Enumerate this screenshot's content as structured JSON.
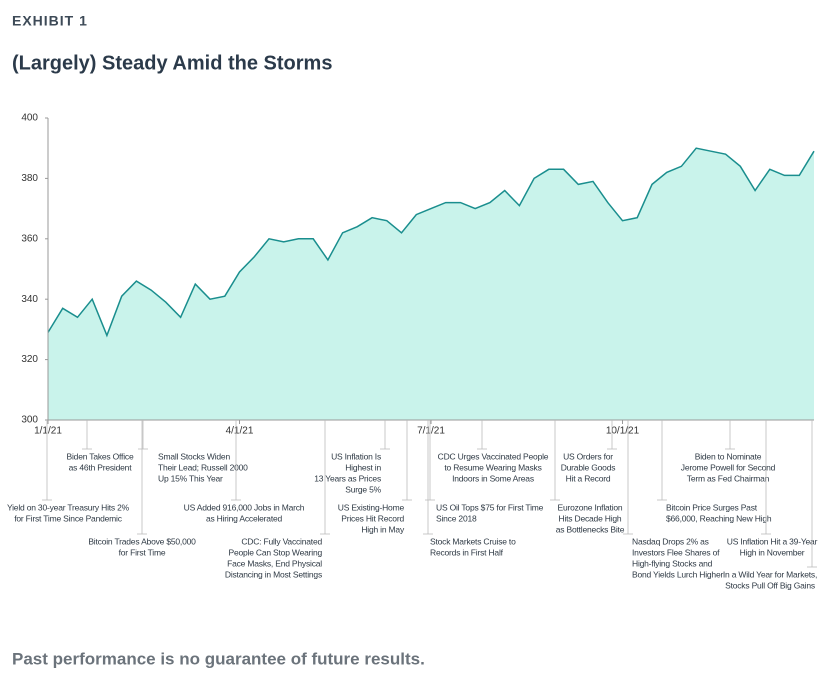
{
  "chart_data": {
    "type": "area",
    "label": "EXHIBIT 1",
    "title": "(Largely) Steady Amid the Storms",
    "footnote": "Past performance is no guarantee of future results.",
    "categories": [
      "1/1/21",
      null,
      null,
      null,
      null,
      null,
      null,
      null,
      null,
      null,
      null,
      null,
      null,
      "4/1/21",
      null,
      null,
      null,
      null,
      null,
      null,
      null,
      null,
      null,
      null,
      null,
      null,
      "7/1/21",
      null,
      null,
      null,
      null,
      null,
      null,
      null,
      null,
      null,
      null,
      null,
      null,
      "10/1/21",
      null,
      null,
      null,
      null,
      null,
      null,
      null,
      null,
      null,
      null,
      null,
      null,
      null
    ],
    "values": [
      329,
      337,
      334,
      340,
      328,
      341,
      346,
      343,
      339,
      334,
      345,
      340,
      341,
      349,
      354,
      360,
      359,
      360,
      360,
      353,
      362,
      364,
      367,
      366,
      362,
      368,
      370,
      372,
      372,
      370,
      372,
      376,
      371,
      380,
      383,
      383,
      378,
      379,
      372,
      366,
      367,
      378,
      382,
      384,
      390,
      389,
      388,
      384,
      376,
      383,
      381,
      381,
      389
    ],
    "color": "#1a8e8e",
    "fill": "#c9f3eb",
    "ylim": [
      300,
      400
    ],
    "yticks": [
      300,
      320,
      340,
      360,
      380,
      400
    ],
    "annotations": [
      {
        "lines": [
          "Biden Takes Office",
          "as 46th President"
        ]
      },
      {
        "lines": [
          "Yield on 30-year Treasury Hits 2%",
          "for First Time Since Pandemic"
        ]
      },
      {
        "lines": [
          "Bitcoin Trades Above $50,000",
          "for First Time"
        ]
      },
      {
        "lines": [
          "Small Stocks Widen",
          "Their Lead; Russell 2000",
          "Up 15% This Year"
        ]
      },
      {
        "lines": [
          "US Added 916,000 Jobs in March",
          "as Hiring Accelerated"
        ]
      },
      {
        "lines": [
          "CDC: Fully Vaccinated",
          "People Can Stop Wearing",
          "Face Masks, End Physical",
          "Distancing in Most Settings"
        ]
      },
      {
        "lines": [
          "US Inflation Is",
          "Highest in",
          "13 Years as Prices",
          "Surge 5%"
        ]
      },
      {
        "lines": [
          "US Existing-Home",
          "Prices Hit Record",
          "High in May"
        ]
      },
      {
        "lines": [
          "CDC Urges Vaccinated People",
          "to Resume Wearing Masks",
          "Indoors in Some Areas"
        ]
      },
      {
        "lines": [
          "US Oil Tops $75 for First Time",
          "Since 2018"
        ]
      },
      {
        "lines": [
          "Stock Markets Cruise to",
          "Records in First Half"
        ]
      },
      {
        "lines": [
          "US Orders for",
          "Durable Goods",
          "Hit a Record"
        ]
      },
      {
        "lines": [
          "Eurozone Inflation",
          "Hits Decade High",
          "as Bottlenecks Bite"
        ]
      },
      {
        "lines": [
          "Nasdaq Drops 2% as",
          "Investors Flee Shares of",
          "High-flying Stocks and",
          "Bond Yields Lurch Higher"
        ]
      },
      {
        "lines": [
          "Biden to Nominate",
          "Jerome Powell for Second",
          "Term as Fed Chairman"
        ]
      },
      {
        "lines": [
          "Bitcoin Price Surges Past",
          "$66,000, Reaching New High"
        ]
      },
      {
        "lines": [
          "US Inflation Hit a 39-Year",
          "High in November"
        ]
      },
      {
        "lines": [
          "In a Wild Year for Markets,",
          "Stocks Pull Off Big Gains"
        ]
      }
    ]
  }
}
